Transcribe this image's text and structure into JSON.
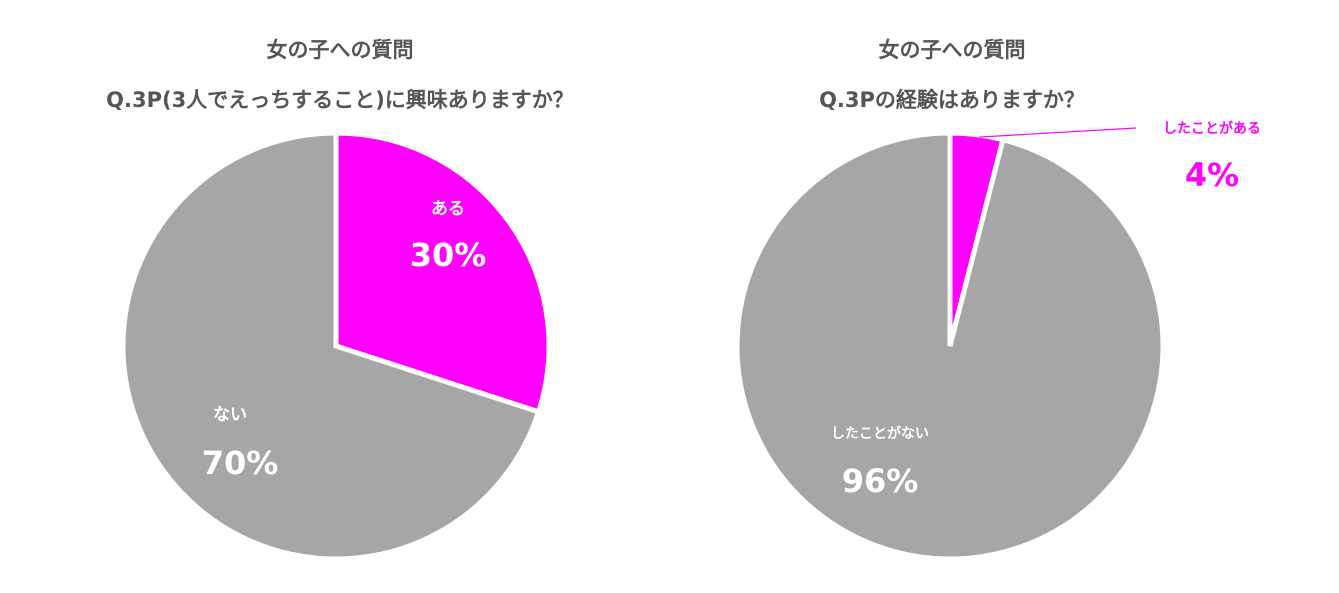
{
  "colors": {
    "highlight": "#ff00ff",
    "neutral": "#a6a6a6",
    "title": "#555555",
    "label": "#ffffff"
  },
  "chart_data": [
    {
      "type": "pie",
      "title": "女の子への質問",
      "subtitle": "Q.3P(3人でえっちすること)に興味ありますか？",
      "categories": [
        "ある",
        "ない"
      ],
      "values": [
        30,
        70
      ],
      "labels": [
        "30%",
        "70%"
      ],
      "colors": [
        "#ff00ff",
        "#a6a6a6"
      ]
    },
    {
      "type": "pie",
      "title": "女の子への質問",
      "subtitle": "Q.3Pの経験はありますか？",
      "categories": [
        "したことがある",
        "したことがない"
      ],
      "values": [
        4,
        96
      ],
      "labels": [
        "4%",
        "96%"
      ],
      "colors": [
        "#ff00ff",
        "#a6a6a6"
      ]
    }
  ]
}
